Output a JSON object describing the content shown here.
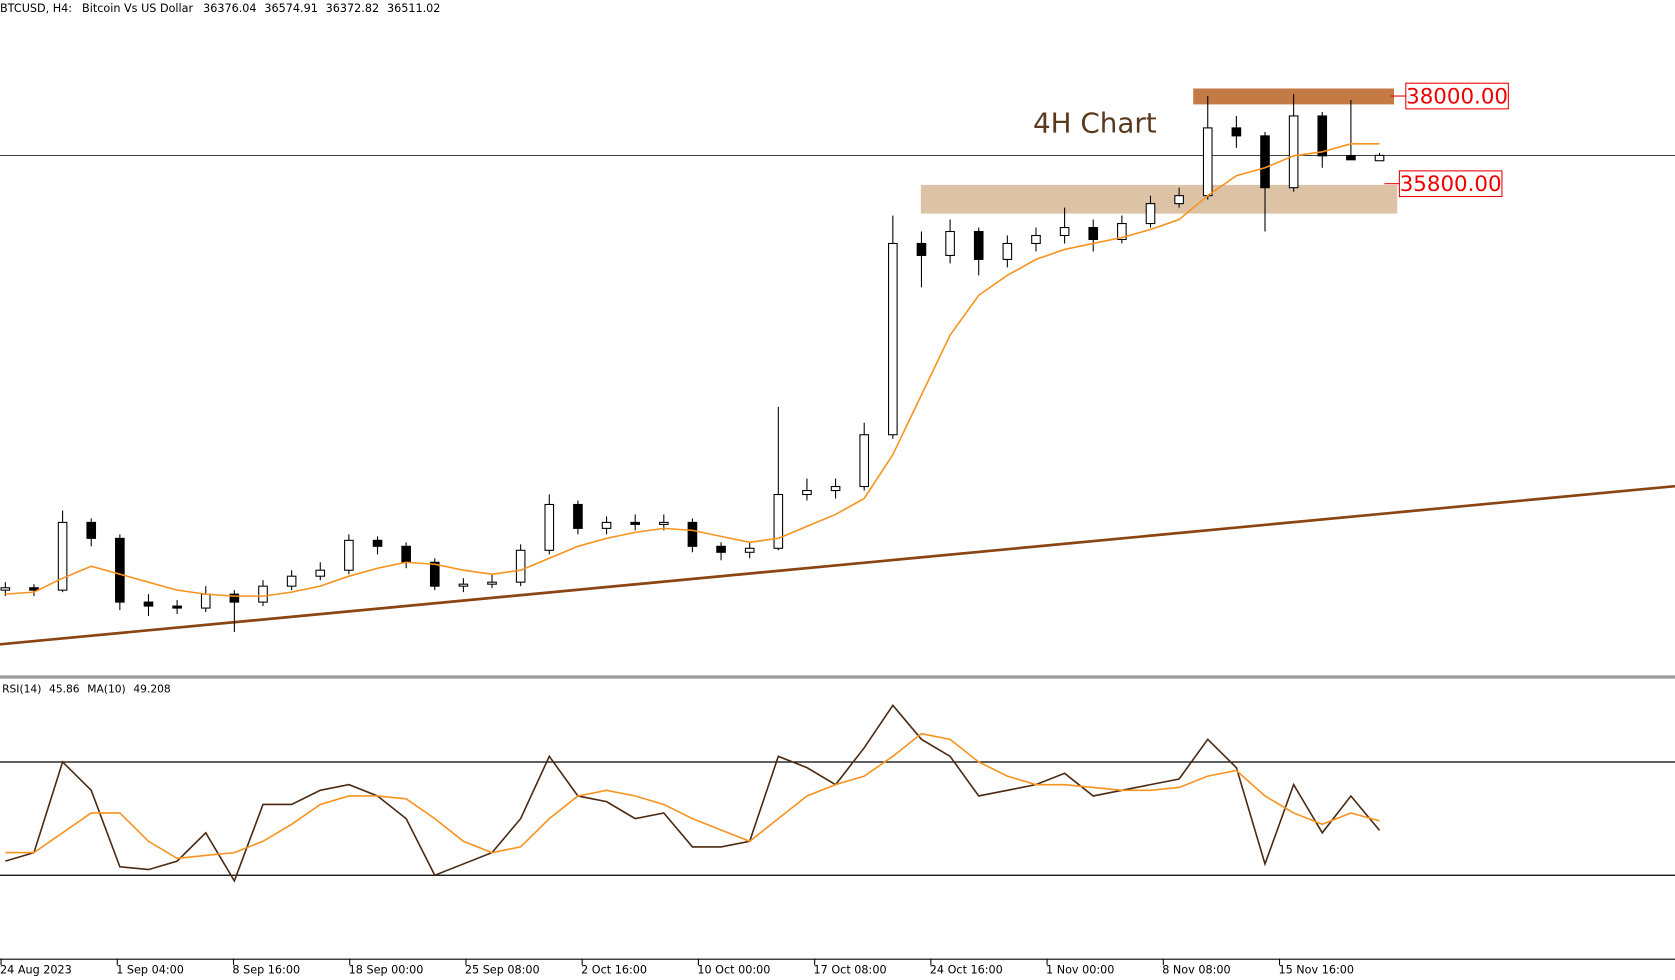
{
  "chart_data": {
    "type": "candlestick",
    "header": {
      "symbol": "BTCUSD, H4:",
      "name": "Bitcoin Vs US Dollar",
      "open": 36376.04,
      "high": 36574.91,
      "low": 36372.82,
      "close": 36511.02
    },
    "annotation": "4H Chart",
    "ylim": [
      23460,
      40410
    ],
    "candles": {
      "open": [
        25600,
        25660,
        25600,
        27300,
        26900,
        25300,
        25200,
        25150,
        25500,
        25300,
        25700,
        25950,
        26100,
        26850,
        26700,
        26300,
        25700,
        25750,
        25800,
        26600,
        27750,
        27150,
        27300,
        27250,
        27300,
        26700,
        26550,
        26650,
        28000,
        28100,
        28200,
        29500,
        34300,
        34000,
        34600,
        33900,
        34300,
        34500,
        34700,
        34400,
        34800,
        35300,
        35500,
        37200,
        37000,
        35700,
        37500,
        36500,
        36376.04
      ],
      "high": [
        25800,
        25750,
        27600,
        27400,
        27000,
        25500,
        25350,
        25700,
        25600,
        25850,
        26100,
        26300,
        27000,
        26950,
        26800,
        26400,
        25900,
        26000,
        26750,
        28000,
        27850,
        27450,
        27500,
        27500,
        27400,
        26800,
        26800,
        30200,
        28400,
        28400,
        29800,
        35000,
        34600,
        34900,
        34700,
        34500,
        34700,
        35200,
        34900,
        35000,
        35500,
        35700,
        38000,
        37500,
        37100,
        38050,
        37600,
        37900,
        36574.91
      ],
      "low": [
        25450,
        25450,
        25550,
        26700,
        25100,
        24950,
        25000,
        25050,
        24550,
        25200,
        25600,
        25850,
        26000,
        26500,
        26150,
        25600,
        25550,
        25650,
        25700,
        26500,
        27000,
        27000,
        27100,
        27100,
        26550,
        26350,
        26400,
        26600,
        27850,
        27900,
        28100,
        29400,
        33200,
        33800,
        33500,
        33700,
        34100,
        34300,
        34100,
        34300,
        34700,
        35200,
        35400,
        36700,
        34600,
        35600,
        36200,
        36400,
        36372.82
      ],
      "close": [
        25660,
        25600,
        27300,
        26900,
        25300,
        25200,
        25150,
        25500,
        25300,
        25700,
        25950,
        26100,
        26850,
        26700,
        26300,
        25700,
        25750,
        25800,
        26600,
        27750,
        27150,
        27300,
        27250,
        27300,
        26700,
        26550,
        26650,
        28000,
        28100,
        28200,
        29500,
        34300,
        34000,
        34600,
        33900,
        34300,
        34500,
        34700,
        34400,
        34800,
        35300,
        35500,
        37200,
        37000,
        35700,
        37500,
        36500,
        36400,
        36511.02
      ]
    },
    "ma": {
      "color": "#f7931e",
      "values": [
        25500,
        25550,
        25900,
        26200,
        26000,
        25800,
        25600,
        25500,
        25450,
        25450,
        25550,
        25700,
        25950,
        26150,
        26300,
        26250,
        26100,
        26000,
        26100,
        26400,
        26700,
        26900,
        27050,
        27150,
        27100,
        26950,
        26800,
        26900,
        27200,
        27500,
        27900,
        29000,
        30500,
        32000,
        33000,
        33500,
        33900,
        34150,
        34300,
        34450,
        34650,
        34900,
        35500,
        36000,
        36200,
        36500,
        36600,
        36800,
        36800
      ]
    },
    "trendline": {
      "color": "#8b4513",
      "values": [
        24240,
        28210
      ]
    },
    "zones": [
      {
        "label": {
          "value": 38000,
          "label": "38000.00"
        },
        "range": [
          37790,
          38190
        ],
        "color": "#c47a45"
      },
      {
        "label": {
          "value": 35800,
          "label": "35800.00"
        },
        "range": [
          35050,
          35770
        ],
        "color": "#dcc3a6"
      }
    ],
    "rsi": {
      "label": "RSI(14)",
      "ma_label": "MA(10)",
      "ylim": [
        0,
        100
      ],
      "levels": [
        30,
        70
      ],
      "color": "#4a2a12",
      "ma_color": "#f7931e",
      "values": [
        35,
        38,
        70,
        60,
        33,
        32,
        35,
        45,
        28,
        55,
        55,
        60,
        62,
        58,
        50,
        30,
        34,
        38,
        50,
        72,
        58,
        56,
        50,
        52,
        40,
        40,
        42,
        72,
        68,
        62,
        75,
        90,
        78,
        72,
        58,
        60,
        62,
        66,
        58,
        60,
        62,
        64,
        78,
        68,
        34,
        62,
        45,
        58,
        45.86
      ],
      "ma": [
        38,
        38,
        45,
        52,
        52,
        42,
        36,
        37,
        38,
        42,
        48,
        55,
        58,
        58,
        57,
        50,
        42,
        38,
        40,
        50,
        58,
        60,
        58,
        55,
        50,
        46,
        42,
        50,
        58,
        62,
        65,
        72,
        80,
        78,
        70,
        65,
        62,
        62,
        61,
        60,
        60,
        61,
        65,
        67,
        58,
        52,
        48,
        52,
        49.208
      ]
    },
    "categories": [
      "24 Aug 2023",
      "1 Sep 04:00",
      "8 Sep 16:00",
      "18 Sep 00:00",
      "25 Sep 08:00",
      "2 Oct 16:00",
      "10 Oct 00:00",
      "17 Oct 08:00",
      "24 Oct 16:00",
      "1 Nov 00:00",
      "8 Nov 08:00",
      "15 Nov 16:00"
    ]
  }
}
